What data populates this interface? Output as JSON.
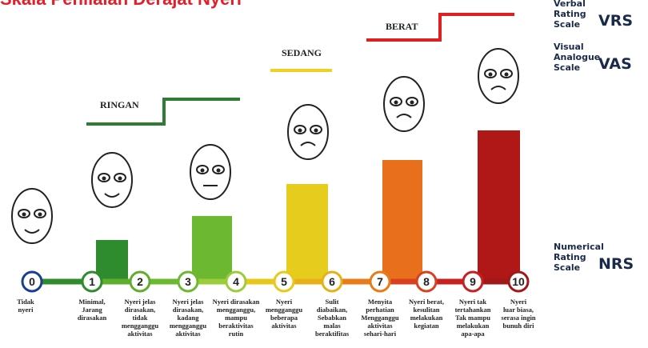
{
  "header": {
    "title": "Skala Penilaian Derajat Nyeri"
  },
  "categories": {
    "ringan": "RINGAN",
    "sedang": "SEDANG",
    "berat": "BERAT"
  },
  "scales": {
    "vrs": {
      "name": [
        "Verbal",
        "Rating",
        "Scale"
      ],
      "abbr": "VRS"
    },
    "vas": {
      "name": [
        "Visual",
        "Analogue",
        "Scale"
      ],
      "abbr": "VAS"
    },
    "nrs": {
      "name": [
        "Numerical",
        "Rating",
        "Scale"
      ],
      "abbr": "NRS"
    }
  },
  "levels": [
    {
      "number": "0",
      "lines": [
        "Tidak",
        "nyeri"
      ]
    },
    {
      "number": "1",
      "lines": [
        "Minimal,",
        "Jarang",
        "dirasakan"
      ]
    },
    {
      "number": "2",
      "lines": [
        "Nyeri jelas",
        "dirasakan,",
        "tidak",
        "mengganggu",
        "aktivitas"
      ]
    },
    {
      "number": "3",
      "lines": [
        "Nyeri jelas",
        "dirasakan,",
        "kadang",
        "mengganggu",
        "aktivitas"
      ]
    },
    {
      "number": "4",
      "lines": [
        "Nyeri dirasakan",
        "mengganggu,",
        "mampu",
        "beraktivitas",
        "rutin"
      ]
    },
    {
      "number": "5",
      "lines": [
        "Nyeri",
        "mengganggu",
        "beberapa",
        "aktivitas"
      ]
    },
    {
      "number": "6",
      "lines": [
        "Sulit",
        "diabaikan,",
        "Sebabkan",
        "malas",
        "beraktifitas"
      ]
    },
    {
      "number": "7",
      "lines": [
        "Menyita",
        "perhatian",
        "Mengganggu",
        "aktivitas",
        "sehari-hari"
      ]
    },
    {
      "number": "8",
      "lines": [
        "Nyeri berat,",
        "kesulitan",
        "melakukan",
        "kegiatan"
      ]
    },
    {
      "number": "9",
      "lines": [
        "Nyeri tak",
        "tertahankan",
        "Tak mampu",
        "melakukan",
        "apa-apa"
      ]
    },
    {
      "number": "10",
      "lines": [
        "Nyeri",
        "luar biasa,",
        "serasa ingin",
        "bunuh diri"
      ]
    }
  ]
}
